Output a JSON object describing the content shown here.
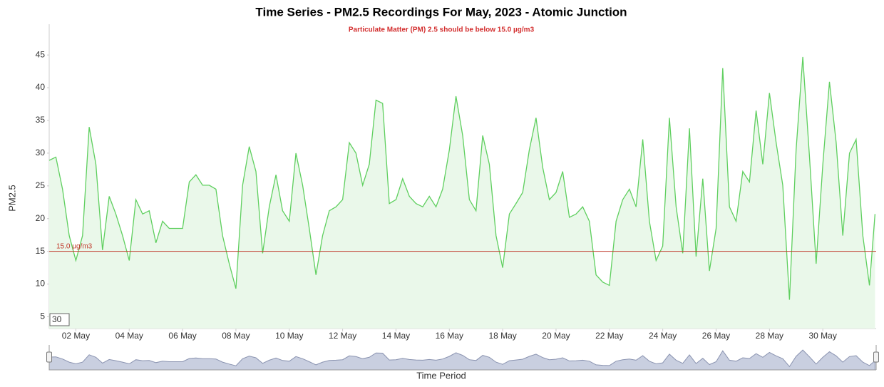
{
  "chart_data": {
    "type": "area",
    "title": "Time Series - PM2.5 Recordings For May, 2023 - Atomic Junction",
    "subtitle": "Particulate Matter (PM) 2.5 should be below 15.0 µg/m3",
    "y_label": "PM2.5",
    "x_label": "Time Period",
    "input_value": 30,
    "threshold": {
      "value": 15,
      "label": "15.0 µg/m3",
      "color": "#c0392b"
    },
    "x": [
      "2023-05-01 00:00",
      "2023-05-01 06:00",
      "2023-05-01 12:00",
      "2023-05-01 18:00",
      "2023-05-02 00:00",
      "2023-05-02 06:00",
      "2023-05-02 12:00",
      "2023-05-02 18:00",
      "2023-05-03 00:00",
      "2023-05-03 06:00",
      "2023-05-03 12:00",
      "2023-05-03 18:00",
      "2023-05-04 00:00",
      "2023-05-04 06:00",
      "2023-05-04 12:00",
      "2023-05-04 18:00",
      "2023-05-05 00:00",
      "2023-05-05 06:00",
      "2023-05-05 12:00",
      "2023-05-05 18:00",
      "2023-05-06 00:00",
      "2023-05-06 06:00",
      "2023-05-06 12:00",
      "2023-05-06 18:00",
      "2023-05-07 00:00",
      "2023-05-07 06:00",
      "2023-05-07 12:00",
      "2023-05-07 18:00",
      "2023-05-08 00:00",
      "2023-05-08 06:00",
      "2023-05-08 12:00",
      "2023-05-08 18:00",
      "2023-05-09 00:00",
      "2023-05-09 06:00",
      "2023-05-09 12:00",
      "2023-05-09 18:00",
      "2023-05-10 00:00",
      "2023-05-10 06:00",
      "2023-05-10 12:00",
      "2023-05-10 18:00",
      "2023-05-11 00:00",
      "2023-05-11 06:00",
      "2023-05-11 12:00",
      "2023-05-11 18:00",
      "2023-05-12 00:00",
      "2023-05-12 06:00",
      "2023-05-12 12:00",
      "2023-05-12 18:00",
      "2023-05-13 00:00",
      "2023-05-13 06:00",
      "2023-05-13 12:00",
      "2023-05-13 18:00",
      "2023-05-14 00:00",
      "2023-05-14 06:00",
      "2023-05-14 12:00",
      "2023-05-14 18:00",
      "2023-05-15 00:00",
      "2023-05-15 06:00",
      "2023-05-15 12:00",
      "2023-05-15 18:00",
      "2023-05-16 00:00",
      "2023-05-16 06:00",
      "2023-05-16 12:00",
      "2023-05-16 18:00",
      "2023-05-17 00:00",
      "2023-05-17 06:00",
      "2023-05-17 12:00",
      "2023-05-17 18:00",
      "2023-05-18 00:00",
      "2023-05-18 06:00",
      "2023-05-18 12:00",
      "2023-05-18 18:00",
      "2023-05-19 00:00",
      "2023-05-19 06:00",
      "2023-05-19 12:00",
      "2023-05-19 18:00",
      "2023-05-20 00:00",
      "2023-05-20 06:00",
      "2023-05-20 12:00",
      "2023-05-20 18:00",
      "2023-05-21 00:00",
      "2023-05-21 06:00",
      "2023-05-21 12:00",
      "2023-05-21 18:00",
      "2023-05-22 00:00",
      "2023-05-22 06:00",
      "2023-05-22 12:00",
      "2023-05-22 18:00",
      "2023-05-23 00:00",
      "2023-05-23 06:00",
      "2023-05-23 12:00",
      "2023-05-23 18:00",
      "2023-05-24 00:00",
      "2023-05-24 06:00",
      "2023-05-24 12:00",
      "2023-05-24 18:00",
      "2023-05-25 00:00",
      "2023-05-25 06:00",
      "2023-05-25 12:00",
      "2023-05-25 18:00",
      "2023-05-26 00:00",
      "2023-05-26 06:00",
      "2023-05-26 12:00",
      "2023-05-26 18:00",
      "2023-05-27 00:00",
      "2023-05-27 06:00",
      "2023-05-27 12:00",
      "2023-05-27 18:00",
      "2023-05-28 00:00",
      "2023-05-28 06:00",
      "2023-05-28 12:00",
      "2023-05-28 18:00",
      "2023-05-29 00:00",
      "2023-05-29 06:00",
      "2023-05-29 12:00",
      "2023-05-29 18:00",
      "2023-05-30 00:00",
      "2023-05-30 06:00",
      "2023-05-30 12:00",
      "2023-05-30 18:00",
      "2023-05-31 00:00",
      "2023-05-31 06:00",
      "2023-05-31 12:00",
      "2023-05-31 18:00",
      "2023-05-31 23:00"
    ],
    "series": [
      {
        "name": "PM2.5",
        "color": "#5fcf5f",
        "fill": "#eaf8ea",
        "values": [
          28.9,
          29.4,
          24.5,
          17.4,
          13.6,
          17.4,
          34,
          28.3,
          15.2,
          23.4,
          20.7,
          17.4,
          13.6,
          22.9,
          20.7,
          21.2,
          16.3,
          19.6,
          18.5,
          18.5,
          18.5,
          25.6,
          26.7,
          25.1,
          25.1,
          24.5,
          17.4,
          13.1,
          9.3,
          25.1,
          31,
          27.2,
          14.7,
          21.8,
          26.7,
          21.2,
          19.6,
          30,
          25.1,
          18.5,
          11.4,
          17.4,
          21.2,
          21.8,
          22.9,
          31.6,
          30,
          25.1,
          28.3,
          38.1,
          37.6,
          22.3,
          22.9,
          26.1,
          23.4,
          22.3,
          21.8,
          23.4,
          21.8,
          24.5,
          30.5,
          38.7,
          32.7,
          22.9,
          21.2,
          32.7,
          28.3,
          17.4,
          12.5,
          20.7,
          22.3,
          24,
          30.5,
          35.4,
          27.8,
          22.9,
          24,
          27.2,
          20.2,
          20.7,
          21.8,
          19.6,
          11.4,
          10.3,
          9.8,
          19.6,
          22.9,
          24.5,
          21.8,
          32.1,
          19.6,
          13.6,
          15.8,
          35.4,
          21.8,
          14.7,
          33.8,
          14.2,
          26.1,
          12,
          18.5,
          43,
          21.8,
          19.6,
          27.2,
          25.6,
          36.5,
          28.3,
          39.2,
          31.6,
          25.1,
          7.6,
          30.5,
          44.7,
          29.4,
          13.1,
          28.3,
          40.9,
          31.6,
          17.4,
          30,
          32.1,
          17.4,
          9.8,
          20.7
        ]
      }
    ],
    "xlim": [
      "2023-05-01 00:00",
      "2023-06-01 00:00"
    ],
    "xticks": [
      {
        "value": "2023-05-02 00:00",
        "label": "02 May"
      },
      {
        "value": "2023-05-04 00:00",
        "label": "04 May"
      },
      {
        "value": "2023-05-06 00:00",
        "label": "06 May"
      },
      {
        "value": "2023-05-08 00:00",
        "label": "08 May"
      },
      {
        "value": "2023-05-10 00:00",
        "label": "10 May"
      },
      {
        "value": "2023-05-12 00:00",
        "label": "12 May"
      },
      {
        "value": "2023-05-14 00:00",
        "label": "14 May"
      },
      {
        "value": "2023-05-16 00:00",
        "label": "16 May"
      },
      {
        "value": "2023-05-18 00:00",
        "label": "18 May"
      },
      {
        "value": "2023-05-20 00:00",
        "label": "20 May"
      },
      {
        "value": "2023-05-22 00:00",
        "label": "22 May"
      },
      {
        "value": "2023-05-24 00:00",
        "label": "24 May"
      },
      {
        "value": "2023-05-26 00:00",
        "label": "26 May"
      },
      {
        "value": "2023-05-28 00:00",
        "label": "28 May"
      },
      {
        "value": "2023-05-30 00:00",
        "label": "30 May"
      }
    ],
    "ylim": [
      3.2,
      49.7
    ],
    "yticks": [
      5,
      10,
      15,
      20,
      25,
      30,
      35,
      40,
      45
    ],
    "grid": false
  }
}
